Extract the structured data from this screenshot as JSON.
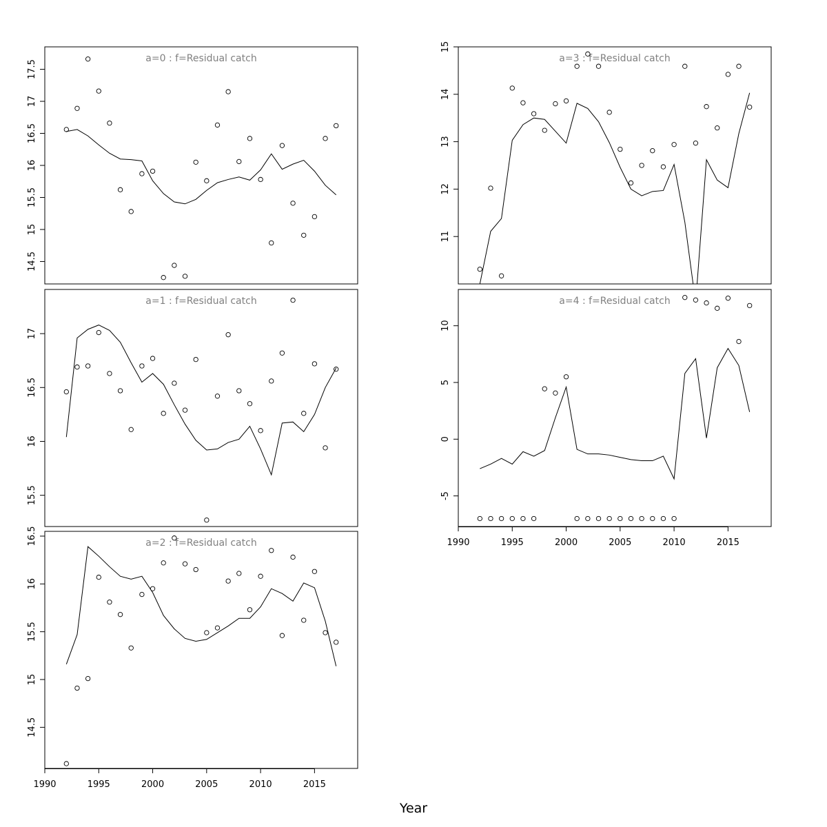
{
  "figure": {
    "xlabel": "Year"
  },
  "chart_data": [
    {
      "type": "line",
      "title": "a=0  :  f=Residual catch",
      "xlabel": "",
      "ylabel": "",
      "xlim": [
        1990,
        2019
      ],
      "ylim": [
        14.15,
        17.85
      ],
      "yticks": [
        14.5,
        15.0,
        15.5,
        16.0,
        16.5,
        17.0,
        17.5
      ],
      "xticks": [],
      "x": [
        1992,
        1993,
        1994,
        1995,
        1996,
        1997,
        1998,
        1999,
        2000,
        2001,
        2002,
        2003,
        2004,
        2005,
        2006,
        2007,
        2008,
        2009,
        2010,
        2011,
        2012,
        2013,
        2014,
        2015,
        2016,
        2017
      ],
      "series": [
        {
          "kind": "points",
          "values": [
            16.56,
            16.89,
            17.66,
            17.16,
            16.66,
            15.62,
            15.28,
            15.87,
            15.91,
            14.25,
            14.44,
            14.27,
            16.05,
            15.76,
            16.63,
            17.15,
            16.06,
            16.42,
            15.78,
            14.79,
            16.31,
            15.41,
            14.91,
            15.2,
            16.42,
            16.62
          ]
        },
        {
          "kind": "line",
          "values": [
            16.53,
            16.56,
            16.46,
            16.32,
            16.19,
            16.1,
            16.09,
            16.07,
            15.76,
            15.56,
            15.43,
            15.4,
            15.47,
            15.61,
            15.73,
            15.78,
            15.82,
            15.77,
            15.93,
            16.18,
            15.94,
            16.02,
            16.08,
            15.91,
            15.69,
            15.54
          ]
        }
      ]
    },
    {
      "type": "line",
      "title": "a=1  :  f=Residual catch",
      "xlabel": "",
      "ylabel": "",
      "xlim": [
        1990,
        2019
      ],
      "ylim": [
        15.21,
        17.41
      ],
      "yticks": [
        15.5,
        16.0,
        16.5,
        17.0
      ],
      "xticks": [],
      "x": [
        1992,
        1993,
        1994,
        1995,
        1996,
        1997,
        1998,
        1999,
        2000,
        2001,
        2002,
        2003,
        2004,
        2005,
        2006,
        2007,
        2008,
        2009,
        2010,
        2011,
        2012,
        2013,
        2014,
        2015,
        2016,
        2017
      ],
      "series": [
        {
          "kind": "points",
          "values": [
            16.46,
            16.69,
            16.7,
            17.01,
            16.63,
            16.47,
            16.11,
            16.7,
            16.77,
            16.26,
            16.54,
            16.29,
            16.76,
            15.27,
            16.42,
            16.99,
            16.47,
            16.35,
            16.1,
            16.56,
            16.82,
            17.31,
            16.26,
            16.72,
            15.94,
            16.67
          ]
        },
        {
          "kind": "line",
          "values": [
            16.04,
            16.96,
            17.04,
            17.08,
            17.03,
            16.92,
            16.73,
            16.55,
            16.63,
            16.53,
            16.34,
            16.16,
            16.01,
            15.92,
            15.93,
            15.99,
            16.02,
            16.14,
            15.93,
            15.69,
            16.17,
            16.18,
            16.09,
            16.25,
            16.5,
            16.68
          ]
        }
      ]
    },
    {
      "type": "line",
      "title": "a=2  :  f=Residual catch",
      "xlabel": "",
      "ylabel": "",
      "xlim": [
        1990,
        2019
      ],
      "ylim": [
        14.07,
        16.55
      ],
      "yticks": [
        14.5,
        15.0,
        15.5,
        16.0,
        16.5
      ],
      "xticks": [
        1990,
        1995,
        2000,
        2005,
        2010,
        2015
      ],
      "x": [
        1992,
        1993,
        1994,
        1995,
        1996,
        1997,
        1998,
        1999,
        2000,
        2001,
        2002,
        2003,
        2004,
        2005,
        2006,
        2007,
        2008,
        2009,
        2010,
        2011,
        2012,
        2013,
        2014,
        2015,
        2016,
        2017
      ],
      "series": [
        {
          "kind": "points",
          "values": [
            14.12,
            14.91,
            15.01,
            16.07,
            15.81,
            15.68,
            15.33,
            15.89,
            15.95,
            16.22,
            16.48,
            16.21,
            16.15,
            15.49,
            15.54,
            16.03,
            16.11,
            15.73,
            16.08,
            16.35,
            15.46,
            16.28,
            15.62,
            16.13,
            15.49,
            15.39
          ]
        },
        {
          "kind": "line",
          "values": [
            15.16,
            15.47,
            16.39,
            16.29,
            16.18,
            16.08,
            16.05,
            16.08,
            15.91,
            15.67,
            15.53,
            15.43,
            15.4,
            15.42,
            15.49,
            15.56,
            15.64,
            15.64,
            15.76,
            15.95,
            15.9,
            15.82,
            16.01,
            15.96,
            15.61,
            15.14
          ]
        }
      ]
    },
    {
      "type": "line",
      "title": "a=3  :  f=Residual catch",
      "xlabel": "",
      "ylabel": "",
      "xlim": [
        1990,
        2019
      ],
      "ylim": [
        10.0,
        15.0
      ],
      "yticks": [
        11,
        12,
        13,
        14,
        15
      ],
      "xticks": [],
      "x": [
        1992,
        1993,
        1994,
        1995,
        1996,
        1997,
        1998,
        1999,
        2000,
        2001,
        2002,
        2003,
        2004,
        2005,
        2006,
        2007,
        2008,
        2009,
        2010,
        2011,
        2012,
        2013,
        2014,
        2015,
        2016,
        2017
      ],
      "series": [
        {
          "kind": "points",
          "values": [
            10.31,
            12.02,
            10.17,
            14.13,
            13.82,
            13.59,
            13.24,
            13.8,
            13.86,
            14.59,
            14.85,
            14.59,
            13.62,
            12.84,
            12.13,
            12.5,
            12.81,
            12.47,
            12.94,
            14.59,
            12.97,
            13.74,
            13.29,
            14.42,
            14.59,
            13.73
          ]
        },
        {
          "kind": "line",
          "values": [
            10.0,
            11.11,
            11.38,
            13.03,
            13.36,
            13.5,
            13.47,
            13.22,
            12.97,
            13.81,
            13.7,
            13.42,
            12.98,
            12.46,
            12.0,
            11.86,
            11.95,
            11.97,
            12.52,
            11.3,
            9.6,
            12.62,
            12.19,
            12.03,
            13.17,
            14.03
          ]
        }
      ]
    },
    {
      "type": "line",
      "title": "a=4  :  f=Residual catch",
      "xlabel": "",
      "ylabel": "",
      "xlim": [
        1990,
        2019
      ],
      "ylim": [
        -7.7,
        13.2
      ],
      "yticks": [
        -5,
        0,
        5,
        10
      ],
      "xticks": [
        1990,
        1995,
        2000,
        2005,
        2010,
        2015
      ],
      "x": [
        1992,
        1993,
        1994,
        1995,
        1996,
        1997,
        1998,
        1999,
        2000,
        2001,
        2002,
        2003,
        2004,
        2005,
        2006,
        2007,
        2008,
        2009,
        2010,
        2011,
        2012,
        2013,
        2014,
        2015,
        2016,
        2017
      ],
      "series": [
        {
          "kind": "points",
          "values": [
            -7,
            -7,
            -7,
            -7,
            -7,
            -7,
            4.44,
            4.07,
            5.5,
            -7,
            -7,
            -7,
            -7,
            -7,
            -7,
            -7,
            -7,
            -7,
            -7,
            12.49,
            12.27,
            12.01,
            11.54,
            12.43,
            8.61,
            11.78
          ]
        },
        {
          "kind": "line",
          "values": [
            -2.6,
            -2.2,
            -1.7,
            -2.2,
            -1.1,
            -1.5,
            -1.0,
            1.9,
            4.6,
            -0.9,
            -1.3,
            -1.3,
            -1.4,
            -1.6,
            -1.8,
            -1.9,
            -1.9,
            -1.5,
            -3.5,
            5.8,
            7.1,
            0.1,
            6.3,
            8.0,
            6.5,
            2.4
          ]
        }
      ]
    }
  ]
}
